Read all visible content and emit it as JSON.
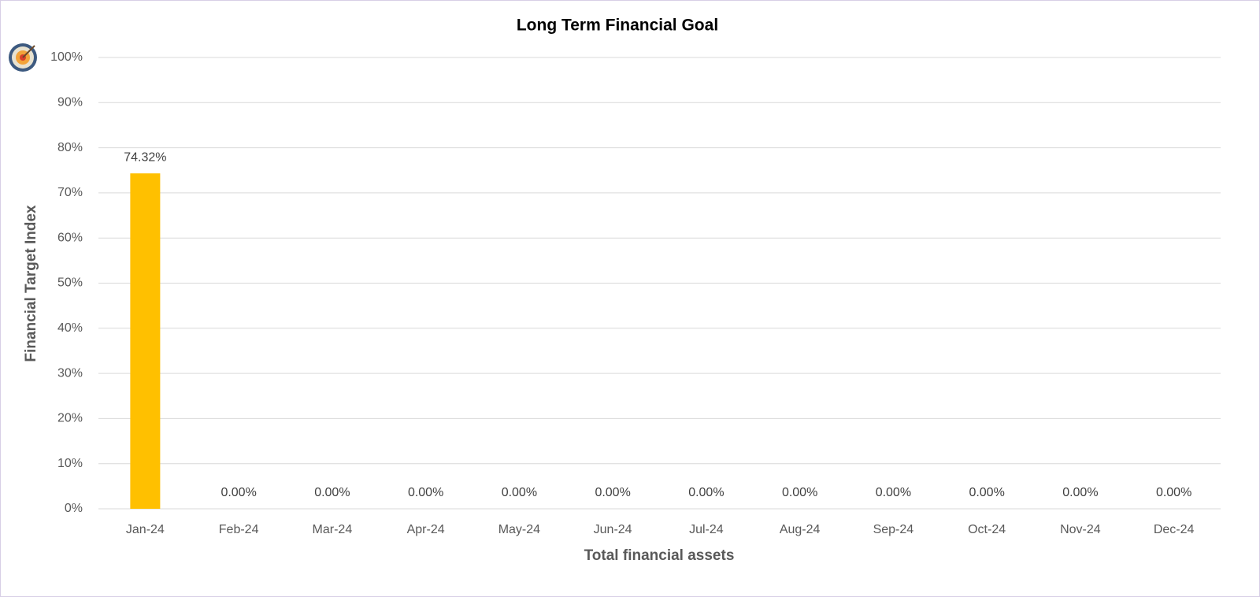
{
  "chart_data": {
    "type": "bar",
    "title": "Long Term Financial Goal",
    "x_label": "Total financial assets",
    "y_label": "Financial Target Index",
    "categories": [
      "Jan-24",
      "Feb-24",
      "Mar-24",
      "Apr-24",
      "May-24",
      "Jun-24",
      "Jul-24",
      "Aug-24",
      "Sep-24",
      "Oct-24",
      "Nov-24",
      "Dec-24"
    ],
    "values": [
      74.32,
      0,
      0,
      0,
      0,
      0,
      0,
      0,
      0,
      0,
      0,
      0
    ],
    "value_labels": [
      "74.32%",
      "0.00%",
      "0.00%",
      "0.00%",
      "0.00%",
      "0.00%",
      "0.00%",
      "0.00%",
      "0.00%",
      "0.00%",
      "0.00%",
      "0.00%"
    ],
    "color": "#ffc000",
    "ylim": [
      0,
      100
    ],
    "yticks": [
      {
        "value": 0,
        "label": "0%"
      },
      {
        "value": 10,
        "label": "10%"
      },
      {
        "value": 20,
        "label": "20%"
      },
      {
        "value": 30,
        "label": "30%"
      },
      {
        "value": 40,
        "label": "40%"
      },
      {
        "value": 50,
        "label": "50%"
      },
      {
        "value": 60,
        "label": "60%"
      },
      {
        "value": 70,
        "label": "70%"
      },
      {
        "value": 80,
        "label": "80%"
      },
      {
        "value": 90,
        "label": "90%"
      },
      {
        "value": 100,
        "label": "100%"
      }
    ],
    "grid": true
  }
}
